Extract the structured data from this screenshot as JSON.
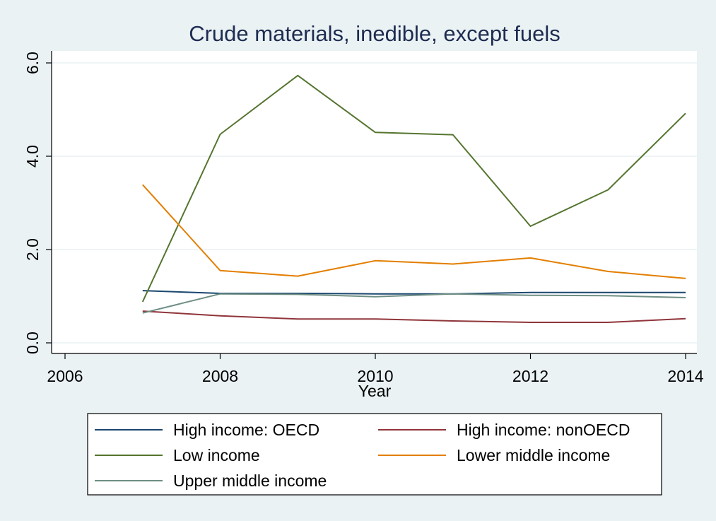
{
  "chart_data": {
    "type": "line",
    "title": "Crude materials, inedible, except fuels",
    "xlabel": "Year",
    "ylabel": "",
    "xlim": [
      2006,
      2014
    ],
    "ylim": [
      0,
      6
    ],
    "x_ticks": [
      2006,
      2008,
      2010,
      2012,
      2014
    ],
    "y_ticks": [
      0,
      2,
      4,
      6
    ],
    "y_tick_labels": [
      "0.0",
      "2.0",
      "4.0",
      "6.0"
    ],
    "grid": true,
    "legend_position": "bottom",
    "x": [
      2007,
      2008,
      2009,
      2010,
      2011,
      2012,
      2013,
      2014
    ],
    "series": [
      {
        "name": "High income: OECD",
        "color": "#1a476f",
        "values": [
          1.12,
          1.06,
          1.06,
          1.05,
          1.05,
          1.08,
          1.08,
          1.08
        ]
      },
      {
        "name": "High income: nonOECD",
        "color": "#90353b",
        "values": [
          0.68,
          0.58,
          0.51,
          0.51,
          0.47,
          0.44,
          0.44,
          0.52
        ]
      },
      {
        "name": "Low income",
        "color": "#55752f",
        "values": [
          0.88,
          4.47,
          5.73,
          4.51,
          4.46,
          2.5,
          3.28,
          4.92
        ]
      },
      {
        "name": "Lower middle income",
        "color": "#e37e00",
        "values": [
          3.39,
          1.55,
          1.43,
          1.76,
          1.69,
          1.82,
          1.53,
          1.38
        ]
      },
      {
        "name": "Upper middle income",
        "color": "#6e8e84",
        "values": [
          0.64,
          1.05,
          1.04,
          0.99,
          1.05,
          1.02,
          1.01,
          0.97
        ]
      }
    ]
  }
}
